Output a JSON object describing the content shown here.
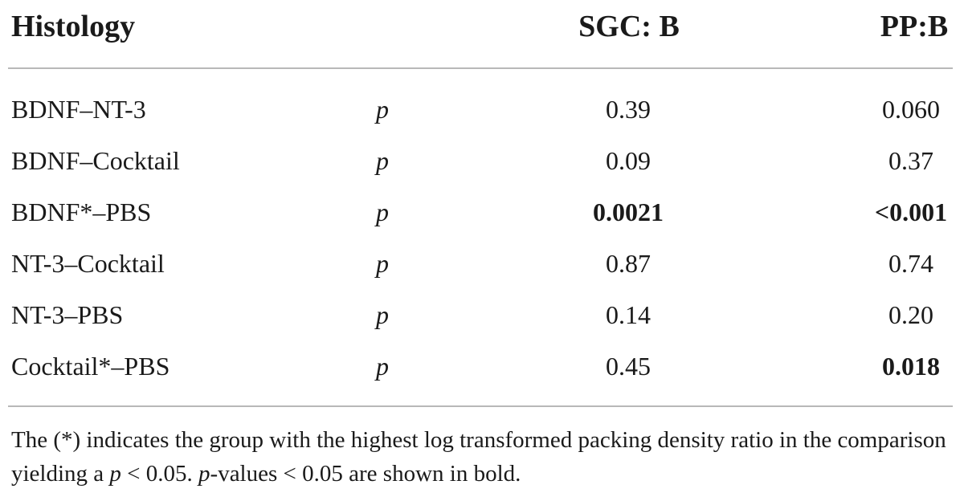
{
  "table": {
    "headers": {
      "title": "Histology",
      "sgc": "SGC: B",
      "pp": "PP:B"
    },
    "rows": [
      {
        "comparison": "BDNF–NT-3",
        "stat": "p",
        "sgc": "0.39",
        "pp": "0.060",
        "sgc_bold": false,
        "pp_bold": false
      },
      {
        "comparison": "BDNF–Cocktail",
        "stat": "p",
        "sgc": "0.09",
        "pp": "0.37",
        "sgc_bold": false,
        "pp_bold": false
      },
      {
        "comparison": "BDNF*–PBS",
        "stat": "p",
        "sgc": "0.0021",
        "pp": "<0.001",
        "sgc_bold": true,
        "pp_bold": true
      },
      {
        "comparison": "NT-3–Cocktail",
        "stat": "p",
        "sgc": "0.87",
        "pp": "0.74",
        "sgc_bold": false,
        "pp_bold": false
      },
      {
        "comparison": "NT-3–PBS",
        "stat": "p",
        "sgc": "0.14",
        "pp": "0.20",
        "sgc_bold": false,
        "pp_bold": false
      },
      {
        "comparison": "Cocktail*–PBS",
        "stat": "p",
        "sgc": "0.45",
        "pp": "0.018",
        "sgc_bold": false,
        "pp_bold": true
      }
    ],
    "footnote": {
      "part1": "The (*) indicates the group with the highest log transformed packing density ratio in the comparison yielding a ",
      "p1": "p",
      "part2": " < 0.05. ",
      "p2": "p",
      "part3": "-values < 0.05 are shown in bold."
    }
  }
}
